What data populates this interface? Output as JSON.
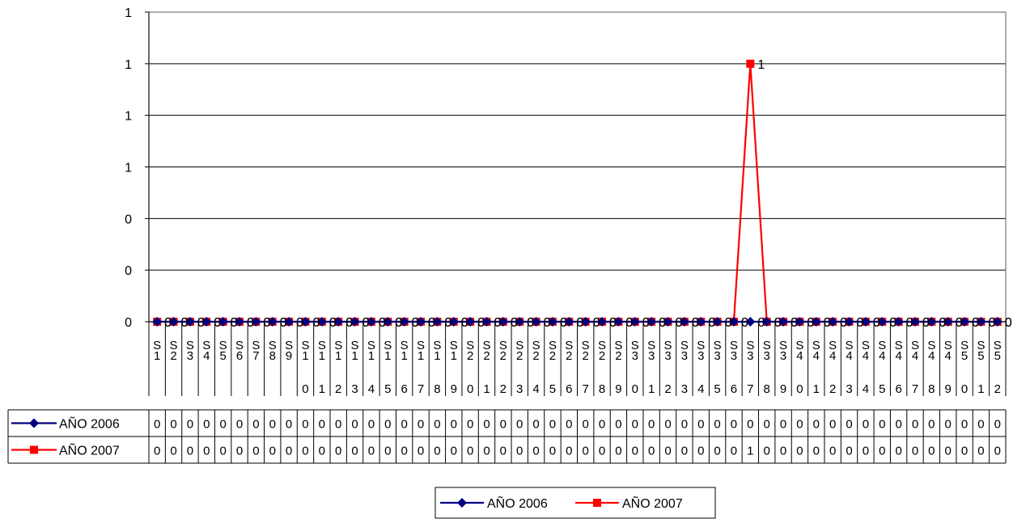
{
  "chart_data": {
    "type": "line",
    "title": "",
    "xlabel": "",
    "ylabel": "",
    "ylim": [
      0,
      1.2
    ],
    "y_tick_labels": [
      "0",
      "0",
      "0",
      "1",
      "1",
      "1",
      "1"
    ],
    "grid": true,
    "legend_position": "bottom",
    "categories": [
      "S1",
      "S2",
      "S3",
      "S4",
      "S5",
      "S6",
      "S7",
      "S8",
      "S9",
      "S10",
      "S11",
      "S12",
      "S13",
      "S14",
      "S15",
      "S16",
      "S17",
      "S18",
      "S19",
      "S20",
      "S21",
      "S22",
      "S23",
      "S24",
      "S25",
      "S26",
      "S27",
      "S28",
      "S29",
      "S30",
      "S31",
      "S32",
      "S33",
      "S34",
      "S35",
      "S36",
      "S37",
      "S38",
      "S39",
      "S40",
      "S41",
      "S42",
      "S43",
      "S44",
      "S45",
      "S46",
      "S47",
      "S48",
      "S49",
      "S50",
      "S51",
      "S52"
    ],
    "series": [
      {
        "name": "AÑO 2006",
        "color": "#000080",
        "marker": "diamond",
        "values": [
          0,
          0,
          0,
          0,
          0,
          0,
          0,
          0,
          0,
          0,
          0,
          0,
          0,
          0,
          0,
          0,
          0,
          0,
          0,
          0,
          0,
          0,
          0,
          0,
          0,
          0,
          0,
          0,
          0,
          0,
          0,
          0,
          0,
          0,
          0,
          0,
          0,
          0,
          0,
          0,
          0,
          0,
          0,
          0,
          0,
          0,
          0,
          0,
          0,
          0,
          0,
          0
        ]
      },
      {
        "name": "AÑO 2007",
        "color": "#ff0000",
        "marker": "square",
        "values": [
          0,
          0,
          0,
          0,
          0,
          0,
          0,
          0,
          0,
          0,
          0,
          0,
          0,
          0,
          0,
          0,
          0,
          0,
          0,
          0,
          0,
          0,
          0,
          0,
          0,
          0,
          0,
          0,
          0,
          0,
          0,
          0,
          0,
          0,
          0,
          0,
          1,
          0,
          0,
          0,
          0,
          0,
          0,
          0,
          0,
          0,
          0,
          0,
          0,
          0,
          0,
          0
        ]
      }
    ]
  }
}
